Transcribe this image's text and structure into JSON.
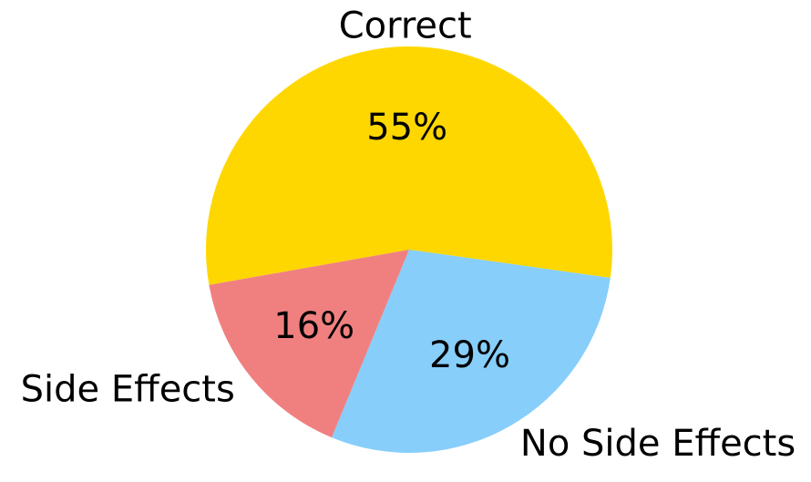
{
  "chart_data": {
    "type": "pie",
    "categories": [
      "Correct",
      "No Side Effects",
      "Side Effects"
    ],
    "values": [
      55,
      29,
      16
    ],
    "value_labels": [
      "55%",
      "29%",
      "16%"
    ],
    "colors": [
      "#FFD700",
      "#87CEFA",
      "#F08080"
    ],
    "start_angle_deg": 190,
    "direction": "clockwise",
    "title": "",
    "legend": "none"
  }
}
